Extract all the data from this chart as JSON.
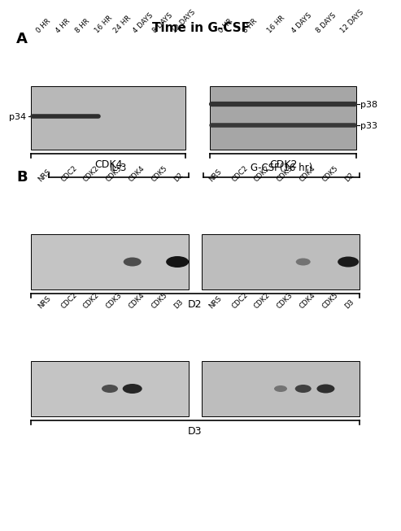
{
  "title": "Time in G-CSF",
  "panel_A_label": "A",
  "panel_B_label": "B",
  "bg_color": "#ffffff",
  "panel_A_left_labels_x": [
    "0 HR",
    "4 HR",
    "8 HR",
    "16 HR",
    "24 HR",
    "4 DAYS",
    "8 DAYS",
    "12 DAYS"
  ],
  "panel_A_right_labels_x": [
    "0 HR",
    "8 HR",
    "16 HR",
    "4 DAYS",
    "8 DAYS",
    "12 DAYS"
  ],
  "panel_A_left_ylabel": "p34",
  "panel_A_right_ylabel_top": "p38",
  "panel_A_right_ylabel_bot": "p33",
  "panel_A_left_xlabel": "CDK4",
  "panel_A_right_xlabel": "CDK2",
  "panel_B_left_top_xlabel": "IL-3",
  "panel_B_right_top_xlabel": "G-CSF(16 hr)",
  "panel_B_d2_xlabel": "D2",
  "panel_B_d3_xlabel": "D3",
  "panel_B_lanes_D2": [
    "NRS",
    "CDC2",
    "CDK2",
    "CDK3",
    "CDK4",
    "CDK5",
    "D2"
  ],
  "panel_B_lanes_D3": [
    "NRS",
    "CDC2",
    "CDK2",
    "CDK3",
    "CDK4",
    "CDK5",
    "D3"
  ]
}
